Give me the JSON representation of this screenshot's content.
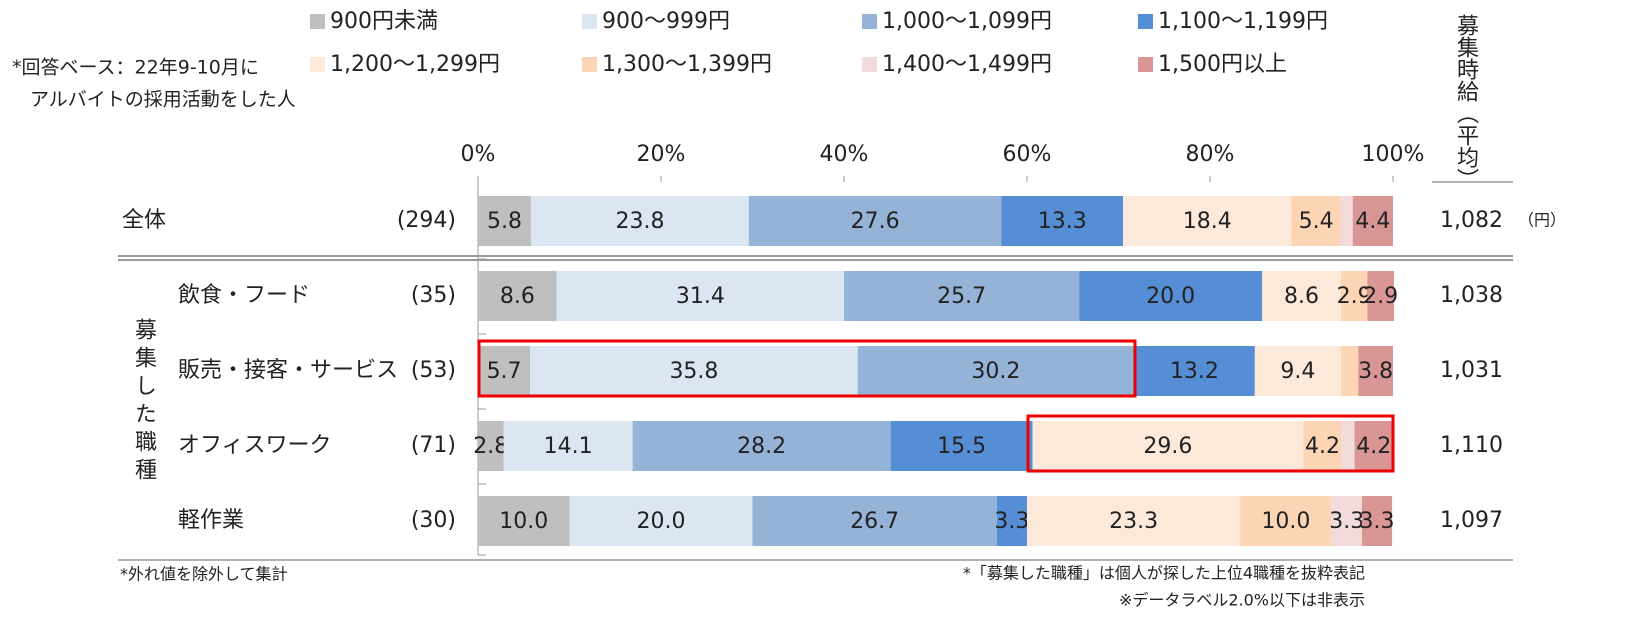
{
  "chart_data": {
    "type": "stacked_bar_horizontal",
    "categories": [
      "全体",
      "飲食・フード",
      "販売・接客・サービス",
      "オフィスワーク",
      "軽作業"
    ],
    "group_label": "募集した職種",
    "sample_sizes": [
      "(294)",
      "(35)",
      "(53)",
      "(71)",
      "(30)"
    ],
    "averages_title": "募集時給（平均）",
    "averages": [
      "1,082",
      "1,038",
      "1,031",
      "1,110",
      "1,097"
    ],
    "averages_unit": "（円）",
    "respondent_note": [
      "*回答ベース：22年9-10月に",
      "アルバイトの採用活動をした人"
    ],
    "footnotes": [
      "*外れ値を除外して集計",
      "*「募集した職種」は個人が探した上位4職種を抜粋表記",
      "※データラベル2.0%以下は非表示"
    ],
    "xlim": [
      0,
      100
    ],
    "xticks": [
      {
        "value": 0,
        "label": "0%"
      },
      {
        "value": 20,
        "label": "20%"
      },
      {
        "value": 40,
        "label": "40%"
      },
      {
        "value": 60,
        "label": "60%"
      },
      {
        "value": 80,
        "label": "80%"
      },
      {
        "value": 100,
        "label": "100%"
      }
    ],
    "series": [
      {
        "name": "900円未満",
        "color": "#bfbfbf",
        "values": [
          5.8,
          8.6,
          5.7,
          2.8,
          10.0
        ],
        "value_labels": [
          "5.8",
          "8.6",
          "5.7",
          "2.8",
          "10.0"
        ]
      },
      {
        "name": "900〜999円",
        "color": "#dce6f2",
        "values": [
          23.8,
          31.4,
          35.8,
          14.1,
          20.0
        ],
        "value_labels": [
          "23.8",
          "31.4",
          "35.8",
          "14.1",
          "20.0"
        ]
      },
      {
        "name": "1,000〜1,099円",
        "color": "#95b3d7",
        "values": [
          27.6,
          25.7,
          30.2,
          28.2,
          26.7
        ],
        "value_labels": [
          "27.6",
          "25.7",
          "30.2",
          "28.2",
          "26.7"
        ]
      },
      {
        "name": "1,100〜1,199円",
        "color": "#558ed5",
        "values": [
          13.3,
          20.0,
          13.2,
          15.5,
          3.3
        ],
        "value_labels": [
          "13.3",
          "20.0",
          "13.2",
          "15.5",
          "3.3"
        ]
      },
      {
        "name": "1,200〜1,299円",
        "color": "#fde9d9",
        "values": [
          18.4,
          8.6,
          9.4,
          29.6,
          23.3
        ],
        "value_labels": [
          "18.4",
          "8.6",
          "9.4",
          "29.6",
          "23.3"
        ]
      },
      {
        "name": "1,300〜1,399円",
        "color": "#fcd5b5",
        "values": [
          5.4,
          2.9,
          1.9,
          4.2,
          10.0
        ],
        "value_labels": [
          "5.4",
          "2.9",
          null,
          "4.2",
          "10.0"
        ]
      },
      {
        "name": "1,400〜1,499円",
        "color": "#f2dcdb",
        "values": [
          1.3,
          0,
          0,
          1.4,
          3.3
        ],
        "value_labels": [
          null,
          null,
          null,
          null,
          "3.3"
        ]
      },
      {
        "name": "1,500円以上",
        "color": "#d99694",
        "values": [
          4.4,
          2.9,
          3.8,
          4.2,
          3.3
        ],
        "value_labels": [
          "4.4",
          "2.9",
          "3.8",
          "4.2",
          "3.3"
        ]
      }
    ]
  }
}
